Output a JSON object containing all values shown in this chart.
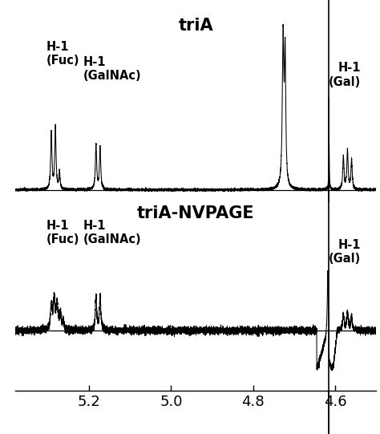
{
  "title_top": "triA",
  "title_bottom": "triA-NVPAGE",
  "xlim": [
    5.38,
    4.5
  ],
  "xticks": [
    5.2,
    5.0,
    4.8,
    4.6
  ],
  "xticklabels": [
    "5.2",
    "5.0",
    "4.8",
    "4.6"
  ],
  "background_color": "#ffffff",
  "line_color": "#000000"
}
